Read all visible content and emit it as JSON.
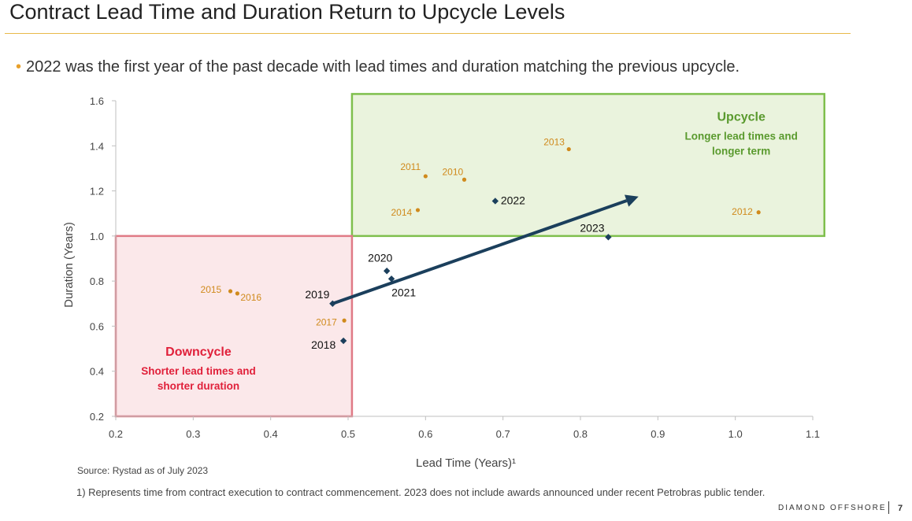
{
  "page": {
    "title": "Contract Lead Time and Duration Return to Upcycle Levels",
    "bullet": "2022 was the first year of the past decade with lead times and duration matching the previous upcycle.",
    "source": "Source: Rystad as of July 2023",
    "footnote": "1)  Represents time from contract execution to contract commencement.  2023 does not include awards announced under recent Petrobras public tender.",
    "brand": "DIAMOND OFFSHORE",
    "page_number": "7"
  },
  "colors": {
    "accent_rule": "#e8b94a",
    "bullet": "#e8a02a",
    "historic_point": "#d08a1c",
    "recent_point": "#1b3f5c",
    "arrow": "#1b3f5c",
    "upcycle_fill": "#eaf3dd",
    "upcycle_border": "#7fbf4d",
    "upcycle_text": "#5a9a2e",
    "downcycle_fill": "#fbe8ea",
    "downcycle_border": "#e07a86",
    "downcycle_text": "#e0203a"
  },
  "chart_data": {
    "type": "scatter",
    "xlabel": "Lead Time (Years)¹",
    "ylabel": "Duration (Years)",
    "xlim": [
      0.2,
      1.1
    ],
    "ylim": [
      0.2,
      1.6
    ],
    "xticks": [
      "0.2",
      "0.3",
      "0.4",
      "0.5",
      "0.6",
      "0.7",
      "0.8",
      "0.9",
      "1.0",
      "1.1"
    ],
    "yticks": [
      "0.2",
      "0.4",
      "0.6",
      "0.8",
      "1.0",
      "1.2",
      "1.4",
      "1.6"
    ],
    "series": [
      {
        "marker": "circle",
        "points": [
          {
            "label": "2010",
            "x": 0.65,
            "y": 1.25
          },
          {
            "label": "2011",
            "x": 0.6,
            "y": 1.265
          },
          {
            "label": "2012",
            "x": 1.03,
            "y": 1.105
          },
          {
            "label": "2013",
            "x": 0.785,
            "y": 1.385
          },
          {
            "label": "2014",
            "x": 0.59,
            "y": 1.115
          },
          {
            "label": "2015",
            "x": 0.348,
            "y": 0.755
          },
          {
            "label": "2016",
            "x": 0.357,
            "y": 0.745
          },
          {
            "label": "2017",
            "x": 0.495,
            "y": 0.625
          }
        ]
      },
      {
        "marker": "diamond",
        "points": [
          {
            "label": "2018",
            "x": 0.494,
            "y": 0.535
          },
          {
            "label": "2019",
            "x": 0.48,
            "y": 0.7
          },
          {
            "label": "2020",
            "x": 0.55,
            "y": 0.845
          },
          {
            "label": "2021",
            "x": 0.556,
            "y": 0.81
          },
          {
            "label": "2022",
            "x": 0.69,
            "y": 1.155
          },
          {
            "label": "2023",
            "x": 0.836,
            "y": 0.995
          }
        ]
      }
    ],
    "regions": [
      {
        "name": "Upcycle",
        "subtitle": [
          "Longer lead times and",
          "longer term"
        ],
        "x": [
          0.505,
          1.115
        ],
        "y": [
          1.0,
          1.63
        ]
      },
      {
        "name": "Downcycle",
        "subtitle": [
          "Shorter lead times and",
          "shorter duration"
        ],
        "x": [
          0.2,
          0.505
        ],
        "y": [
          0.2,
          1.0
        ]
      }
    ],
    "arrow": {
      "from": [
        0.48,
        0.7
      ],
      "to": [
        0.875,
        1.175
      ]
    }
  }
}
